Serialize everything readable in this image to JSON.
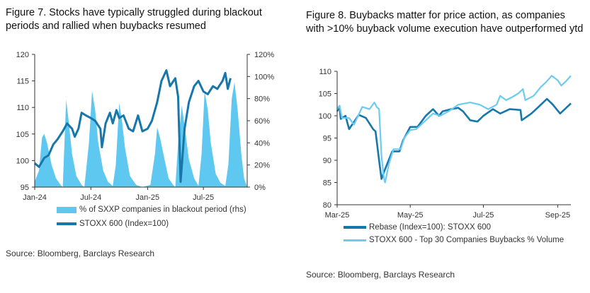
{
  "colors": {
    "dark": "#1777aa",
    "light": "#6dcbf0",
    "area": "#5ec8f0"
  },
  "chart_data": [
    {
      "type": "line+area",
      "title": "Figure 7. Stocks have typically struggled during blackout periods and rallied when buybacks resumed",
      "source": "Source: Bloomberg, Barclays Research",
      "ylim": [
        95,
        120
      ],
      "yticks": [
        "95",
        "100",
        "105",
        "110",
        "115",
        "120"
      ],
      "y2lim": [
        0,
        120
      ],
      "y2ticks": [
        "0%",
        "20%",
        "40%",
        "60%",
        "80%",
        "100%",
        "120%"
      ],
      "xlim": [
        "2024-01-01",
        "2025-11-20"
      ],
      "xticks": [
        {
          "date": "2024-01-01",
          "label": "Jan-24"
        },
        {
          "date": "2024-07-01",
          "label": "Jul-24"
        },
        {
          "date": "2025-01-01",
          "label": "Jan-25"
        },
        {
          "date": "2025-07-01",
          "label": "Jul-25"
        }
      ],
      "legend_placement": "bottom",
      "series": [
        {
          "name": "% of SXXP companies in blackout period (rhs)",
          "kind": "area",
          "axis": "right",
          "points": [
            [
              "2024-01-01",
              5
            ],
            [
              "2024-01-15",
              15
            ],
            [
              "2024-01-25",
              45
            ],
            [
              "2024-02-01",
              48
            ],
            [
              "2024-02-10",
              40
            ],
            [
              "2024-02-25",
              20
            ],
            [
              "2024-03-10",
              8
            ],
            [
              "2024-03-25",
              2
            ],
            [
              "2024-04-01",
              0
            ],
            [
              "2024-04-05",
              30
            ],
            [
              "2024-04-12",
              79
            ],
            [
              "2024-04-20",
              60
            ],
            [
              "2024-05-01",
              30
            ],
            [
              "2024-05-15",
              10
            ],
            [
              "2024-06-01",
              2
            ],
            [
              "2024-06-10",
              0
            ],
            [
              "2024-06-25",
              40
            ],
            [
              "2024-07-05",
              87
            ],
            [
              "2024-07-15",
              70
            ],
            [
              "2024-07-25",
              40
            ],
            [
              "2024-08-10",
              15
            ],
            [
              "2024-08-25",
              5
            ],
            [
              "2024-09-10",
              1
            ],
            [
              "2024-09-20",
              20
            ],
            [
              "2024-10-01",
              76
            ],
            [
              "2024-10-10",
              60
            ],
            [
              "2024-10-20",
              35
            ],
            [
              "2024-11-05",
              10
            ],
            [
              "2024-11-25",
              2
            ],
            [
              "2024-12-15",
              0
            ],
            [
              "2025-01-10",
              2
            ],
            [
              "2025-01-25",
              30
            ],
            [
              "2025-02-01",
              54
            ],
            [
              "2025-02-10",
              45
            ],
            [
              "2025-02-25",
              25
            ],
            [
              "2025-03-10",
              8
            ],
            [
              "2025-03-25",
              2
            ],
            [
              "2025-04-01",
              0
            ],
            [
              "2025-04-10",
              40
            ],
            [
              "2025-04-22",
              74
            ],
            [
              "2025-05-01",
              55
            ],
            [
              "2025-05-15",
              25
            ],
            [
              "2025-06-01",
              8
            ],
            [
              "2025-06-15",
              1
            ],
            [
              "2025-06-25",
              30
            ],
            [
              "2025-07-05",
              87
            ],
            [
              "2025-07-15",
              70
            ],
            [
              "2025-07-25",
              40
            ],
            [
              "2025-08-10",
              12
            ],
            [
              "2025-08-25",
              4
            ],
            [
              "2025-09-10",
              1
            ],
            [
              "2025-09-20",
              20
            ],
            [
              "2025-10-01",
              80
            ],
            [
              "2025-10-10",
              95
            ],
            [
              "2025-10-20",
              70
            ],
            [
              "2025-11-01",
              30
            ],
            [
              "2025-11-10",
              8
            ],
            [
              "2025-11-20",
              0
            ]
          ]
        },
        {
          "name": "STOXX 600 (Index=100)",
          "kind": "line",
          "axis": "left",
          "points": [
            [
              "2024-01-01",
              99.5
            ],
            [
              "2024-01-15",
              98.8
            ],
            [
              "2024-02-01",
              100.5
            ],
            [
              "2024-02-15",
              101
            ],
            [
              "2024-03-01",
              103
            ],
            [
              "2024-03-15",
              104
            ],
            [
              "2024-04-01",
              105.5
            ],
            [
              "2024-04-15",
              107
            ],
            [
              "2024-05-01",
              106
            ],
            [
              "2024-05-10",
              104.5
            ],
            [
              "2024-05-22",
              106
            ],
            [
              "2024-06-01",
              109
            ],
            [
              "2024-06-15",
              108.5
            ],
            [
              "2024-07-01",
              108
            ],
            [
              "2024-07-15",
              107.5
            ],
            [
              "2024-08-01",
              106
            ],
            [
              "2024-08-06",
              102.5
            ],
            [
              "2024-08-18",
              107
            ],
            [
              "2024-09-01",
              109
            ],
            [
              "2024-09-10",
              107
            ],
            [
              "2024-09-22",
              109.5
            ],
            [
              "2024-10-01",
              108
            ],
            [
              "2024-10-15",
              108.5
            ],
            [
              "2024-11-01",
              106
            ],
            [
              "2024-11-15",
              105.5
            ],
            [
              "2024-12-01",
              108.5
            ],
            [
              "2024-12-15",
              105.5
            ],
            [
              "2025-01-01",
              106
            ],
            [
              "2025-01-15",
              107.5
            ],
            [
              "2025-02-01",
              111
            ],
            [
              "2025-02-15",
              115
            ],
            [
              "2025-03-03",
              117
            ],
            [
              "2025-03-15",
              114
            ],
            [
              "2025-04-01",
              115.5
            ],
            [
              "2025-04-10",
              112
            ],
            [
              "2025-04-18",
              96
            ],
            [
              "2025-05-01",
              106
            ],
            [
              "2025-05-15",
              111
            ],
            [
              "2025-06-01",
              114
            ],
            [
              "2025-06-15",
              115
            ],
            [
              "2025-07-01",
              113
            ],
            [
              "2025-07-15",
              112.5
            ],
            [
              "2025-08-01",
              114
            ],
            [
              "2025-08-15",
              113.5
            ],
            [
              "2025-09-01",
              115
            ],
            [
              "2025-09-10",
              116.5
            ],
            [
              "2025-09-18",
              113.5
            ],
            [
              "2025-09-27",
              115.5
            ]
          ]
        }
      ]
    },
    {
      "type": "line",
      "title": "Figure 8. Buybacks matter for price action, as companies with >10% buyback volume execution have outperformed ytd",
      "source": "Source: Bloomberg, Barclays Research",
      "ylim": [
        80,
        110
      ],
      "yticks": [
        "80",
        "85",
        "90",
        "95",
        "100",
        "105",
        "110"
      ],
      "xlim": [
        "2025-03-01",
        "2025-09-12"
      ],
      "xticks": [
        {
          "date": "2025-03-01",
          "label": "Mar-25"
        },
        {
          "date": "2025-05-01",
          "label": "May-25"
        },
        {
          "date": "2025-07-01",
          "label": "Jul-25"
        },
        {
          "date": "2025-09-01",
          "label": "Sep-25"
        }
      ],
      "legend_placement": "bottom",
      "series": [
        {
          "name": "Rebase (Index=100):  STOXX 600",
          "color": "dark",
          "points": [
            [
              "2025-03-01",
              101
            ],
            [
              "2025-03-03",
              102
            ],
            [
              "2025-03-04",
              99.3
            ],
            [
              "2025-03-08",
              100
            ],
            [
              "2025-03-11",
              97
            ],
            [
              "2025-03-19",
              100.2
            ],
            [
              "2025-03-25",
              99.5
            ],
            [
              "2025-03-31",
              97
            ],
            [
              "2025-04-02",
              96.5
            ],
            [
              "2025-04-05",
              90
            ],
            [
              "2025-04-07",
              85.8
            ],
            [
              "2025-04-10",
              88
            ],
            [
              "2025-04-16",
              92
            ],
            [
              "2025-04-22",
              92
            ],
            [
              "2025-04-25",
              94.5
            ],
            [
              "2025-05-01",
              97.5
            ],
            [
              "2025-05-07",
              97.5
            ],
            [
              "2025-05-14",
              100
            ],
            [
              "2025-05-20",
              101.5
            ],
            [
              "2025-05-25",
              100
            ],
            [
              "2025-05-28",
              101
            ],
            [
              "2025-06-04",
              101.5
            ],
            [
              "2025-06-10",
              101.8
            ],
            [
              "2025-06-14",
              101
            ],
            [
              "2025-06-20",
              99
            ],
            [
              "2025-06-26",
              98.7
            ],
            [
              "2025-07-01",
              100
            ],
            [
              "2025-07-09",
              101.5
            ],
            [
              "2025-07-15",
              100.5
            ],
            [
              "2025-07-23",
              101.5
            ],
            [
              "2025-08-01",
              101.3
            ],
            [
              "2025-08-02",
              99
            ],
            [
              "2025-08-10",
              100.5
            ],
            [
              "2025-08-16",
              102
            ],
            [
              "2025-08-23",
              103.8
            ],
            [
              "2025-08-28",
              102.5
            ],
            [
              "2025-09-03",
              100.5
            ],
            [
              "2025-09-07",
              101.5
            ],
            [
              "2025-09-12",
              102.8
            ]
          ]
        },
        {
          "name": "STOXX 600 - Top 30 Companies Buybacks % Volume",
          "color": "light",
          "points": [
            [
              "2025-03-01",
              101.5
            ],
            [
              "2025-03-03",
              102.3
            ],
            [
              "2025-03-05",
              99.5
            ],
            [
              "2025-03-11",
              99.5
            ],
            [
              "2025-03-15",
              98
            ],
            [
              "2025-03-22",
              102
            ],
            [
              "2025-03-28",
              101.5
            ],
            [
              "2025-04-01",
              103
            ],
            [
              "2025-04-03",
              102
            ],
            [
              "2025-04-05",
              101.5
            ],
            [
              "2025-04-07",
              91
            ],
            [
              "2025-04-09",
              86
            ],
            [
              "2025-04-10",
              85
            ],
            [
              "2025-04-13",
              89
            ],
            [
              "2025-04-17",
              92.5
            ],
            [
              "2025-04-23",
              92.5
            ],
            [
              "2025-04-26",
              95
            ],
            [
              "2025-05-01",
              96.8
            ],
            [
              "2025-05-06",
              97
            ],
            [
              "2025-05-14",
              99
            ],
            [
              "2025-05-20",
              100.5
            ],
            [
              "2025-05-26",
              100
            ],
            [
              "2025-06-02",
              101
            ],
            [
              "2025-06-10",
              102.5
            ],
            [
              "2025-06-20",
              103
            ],
            [
              "2025-06-28",
              102.5
            ],
            [
              "2025-07-05",
              101.5
            ],
            [
              "2025-07-12",
              102.5
            ],
            [
              "2025-07-15",
              104.5
            ],
            [
              "2025-07-20",
              103.5
            ],
            [
              "2025-07-25",
              104.2
            ],
            [
              "2025-07-30",
              105
            ],
            [
              "2025-08-03",
              106
            ],
            [
              "2025-08-05",
              103.5
            ],
            [
              "2025-08-12",
              104.5
            ],
            [
              "2025-08-18",
              106.5
            ],
            [
              "2025-08-22",
              107.5
            ],
            [
              "2025-08-27",
              109
            ],
            [
              "2025-09-01",
              108
            ],
            [
              "2025-09-04",
              106.8
            ],
            [
              "2025-09-08",
              107.8
            ],
            [
              "2025-09-12",
              109
            ]
          ]
        }
      ]
    }
  ]
}
